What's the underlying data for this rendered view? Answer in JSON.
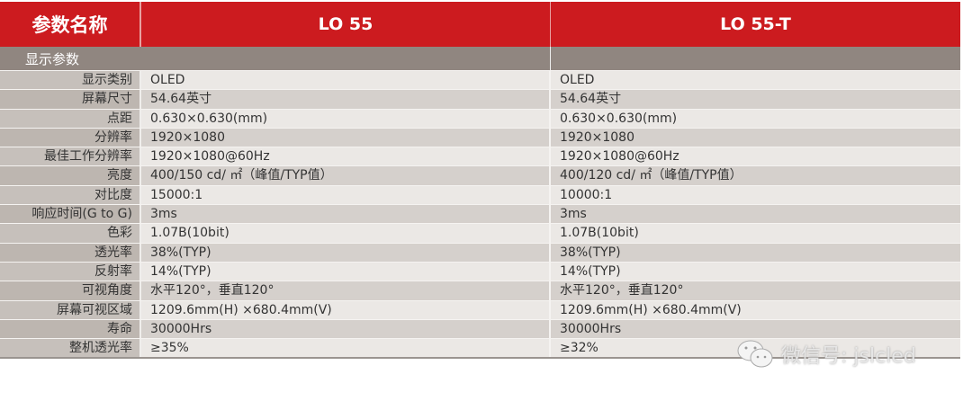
{
  "header": {
    "param_label": "参数名称",
    "model1": "LO 55",
    "model2": "LO 55-T"
  },
  "section": "显示参数",
  "rows": [
    {
      "label": "显示类别",
      "v1": "OLED",
      "v2": "OLED"
    },
    {
      "label": "屏幕尺寸",
      "v1": "54.64英寸",
      "v2": "54.64英寸"
    },
    {
      "label": "点距",
      "v1": "0.630×0.630(mm)",
      "v2": "0.630×0.630(mm)"
    },
    {
      "label": "分辨率",
      "v1": "1920×1080",
      "v2": "1920×1080"
    },
    {
      "label": "最佳工作分辨率",
      "v1": "1920×1080@60Hz",
      "v2": "1920×1080@60Hz"
    },
    {
      "label": "亮度",
      "v1": "400/150 cd/ ㎡（峰值/TYP值）",
      "v2": "400/120 cd/ ㎡（峰值/TYP值）"
    },
    {
      "label": "对比度",
      "v1": "15000:1",
      "v2": "10000:1"
    },
    {
      "label": "响应时间(G to G)",
      "v1": "3ms",
      "v2": "3ms"
    },
    {
      "label": "色彩",
      "v1": "1.07B(10bit)",
      "v2": "1.07B(10bit)"
    },
    {
      "label": "透光率",
      "v1": "38%(TYP)",
      "v2": "38%(TYP)"
    },
    {
      "label": "反射率",
      "v1": "14%(TYP)",
      "v2": "14%(TYP)"
    },
    {
      "label": "可视角度",
      "v1": "水平120°，垂直120°",
      "v2": "水平120°，垂直120°"
    },
    {
      "label": "屏幕可视区域",
      "v1": "1209.6mm(H) ×680.4mm(V)",
      "v2": "1209.6mm(H) ×680.4mm(V)"
    },
    {
      "label": "寿命",
      "v1": "30000Hrs",
      "v2": "30000Hrs"
    },
    {
      "label": "整机透光率",
      "v1": "≥35%",
      "v2": "≥32%"
    }
  ],
  "watermark": "微信号: jslcled",
  "colors": {
    "header": "#cc1b1f",
    "section": "#908680"
  }
}
